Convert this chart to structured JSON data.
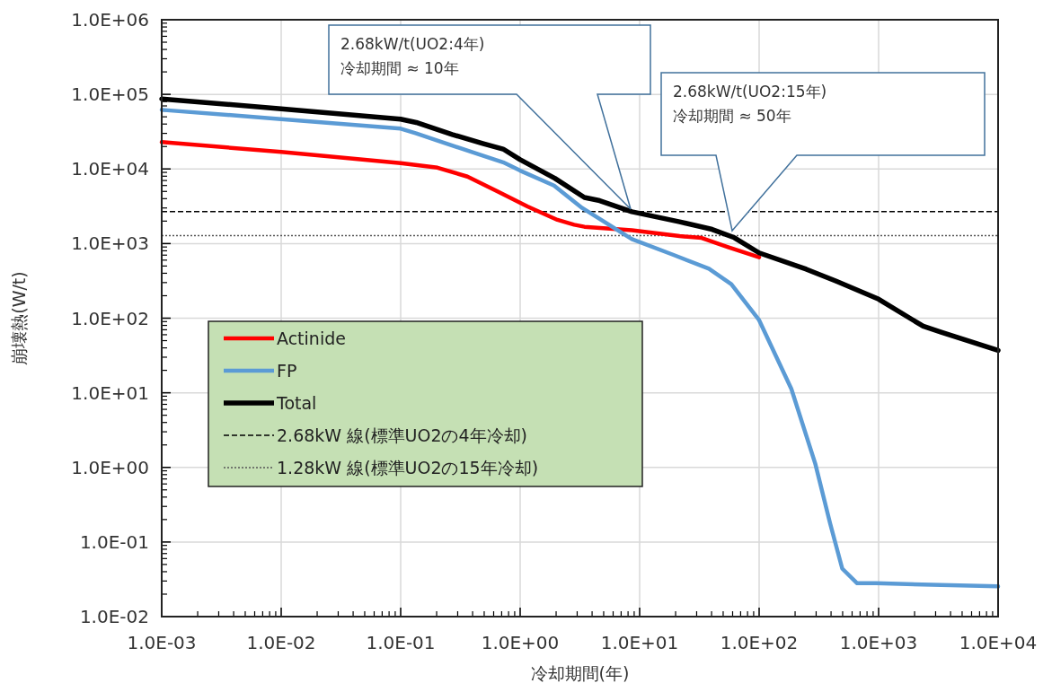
{
  "chart_data": {
    "type": "line",
    "xlabel": "冷却期間(年)",
    "ylabel": "崩壊熱(W/t)",
    "log": "xy",
    "xlim": [
      0.001,
      10000
    ],
    "ylim": [
      0.01,
      1000000
    ],
    "xticks": [
      {
        "value": 0.001,
        "label": "1.0E-03"
      },
      {
        "value": 0.01,
        "label": "1.0E-02"
      },
      {
        "value": 0.1,
        "label": "1.0E-01"
      },
      {
        "value": 1,
        "label": "1.0E+00"
      },
      {
        "value": 10,
        "label": "1.0E+01"
      },
      {
        "value": 100,
        "label": "1.0E+02"
      },
      {
        "value": 1000,
        "label": "1.0E+03"
      },
      {
        "value": 10000,
        "label": "1.0E+04"
      }
    ],
    "yticks": [
      {
        "value": 0.01,
        "label": "1.0E-02"
      },
      {
        "value": 0.1,
        "label": "1.0E-01"
      },
      {
        "value": 1,
        "label": "1.0E+00"
      },
      {
        "value": 10,
        "label": "1.0E+01"
      },
      {
        "value": 100,
        "label": "1.0E+02"
      },
      {
        "value": 1000,
        "label": "1.0E+03"
      },
      {
        "value": 10000,
        "label": "1.0E+04"
      },
      {
        "value": 100000,
        "label": "1.0E+05"
      },
      {
        "value": 1000000,
        "label": "1.0E+06"
      }
    ],
    "grid": true,
    "legend": "left",
    "marker": "none",
    "line_style": "solid",
    "series": [
      {
        "name": "Actinide",
        "color": "#ff0000",
        "x": [
          0.001,
          0.01,
          0.1,
          0.203,
          0.362,
          0.646,
          1.15,
          2.05,
          2.83,
          3.45,
          8.6,
          21.6,
          33,
          55,
          100
        ],
        "values": [
          22900,
          16900,
          12000,
          10400,
          7900,
          5000,
          3150,
          2080,
          1790,
          1680,
          1510,
          1260,
          1190,
          895,
          655
        ]
      },
      {
        "name": "FP",
        "color": "#5b9bd5",
        "x": [
          0.001,
          0.01,
          0.1,
          0.135,
          0.203,
          0.486,
          0.72,
          1,
          1.92,
          3.3,
          8.6,
          19.2,
          38,
          58.5,
          100,
          186,
          295,
          393,
          496,
          661,
          950,
          10000
        ],
        "values": [
          62000,
          46600,
          34700,
          30000,
          24000,
          15100,
          12300,
          9500,
          6000,
          3000,
          1150,
          705,
          460,
          285,
          94,
          11.3,
          1.12,
          0.177,
          0.044,
          0.028,
          0.028,
          0.0254
        ]
      },
      {
        "name": "Total",
        "color": "#000000",
        "x": [
          0.001,
          0.01,
          0.1,
          0.135,
          0.27,
          0.486,
          0.72,
          1,
          1.95,
          3.45,
          4.63,
          8.6,
          21.6,
          40.4,
          62,
          100,
          248,
          442,
          1000,
          2360,
          3340,
          10000
        ],
        "values": [
          87000,
          64000,
          46600,
          42000,
          29000,
          22000,
          18500,
          13300,
          7500,
          4150,
          3760,
          2670,
          1960,
          1550,
          1200,
          750,
          453,
          313,
          180,
          78,
          65,
          37
        ]
      }
    ],
    "ref_lines": [
      {
        "axis": "y",
        "value": 2680,
        "label": "2.68kW 線(標準UO2の4年冷却)",
        "color": "#000000",
        "line_style": "dashed"
      },
      {
        "axis": "y",
        "value": 1280,
        "label": "1.28kW 線(標準UO2の15年冷却)",
        "color": "#555555",
        "line_style": "dotted"
      }
    ],
    "annotations": [
      "2.68kW/t(UO2:4年)\n冷却期間 ≈ 10年",
      "2.68kW/t(UO2:15年)\n冷却期間 ≈ 50年"
    ]
  }
}
